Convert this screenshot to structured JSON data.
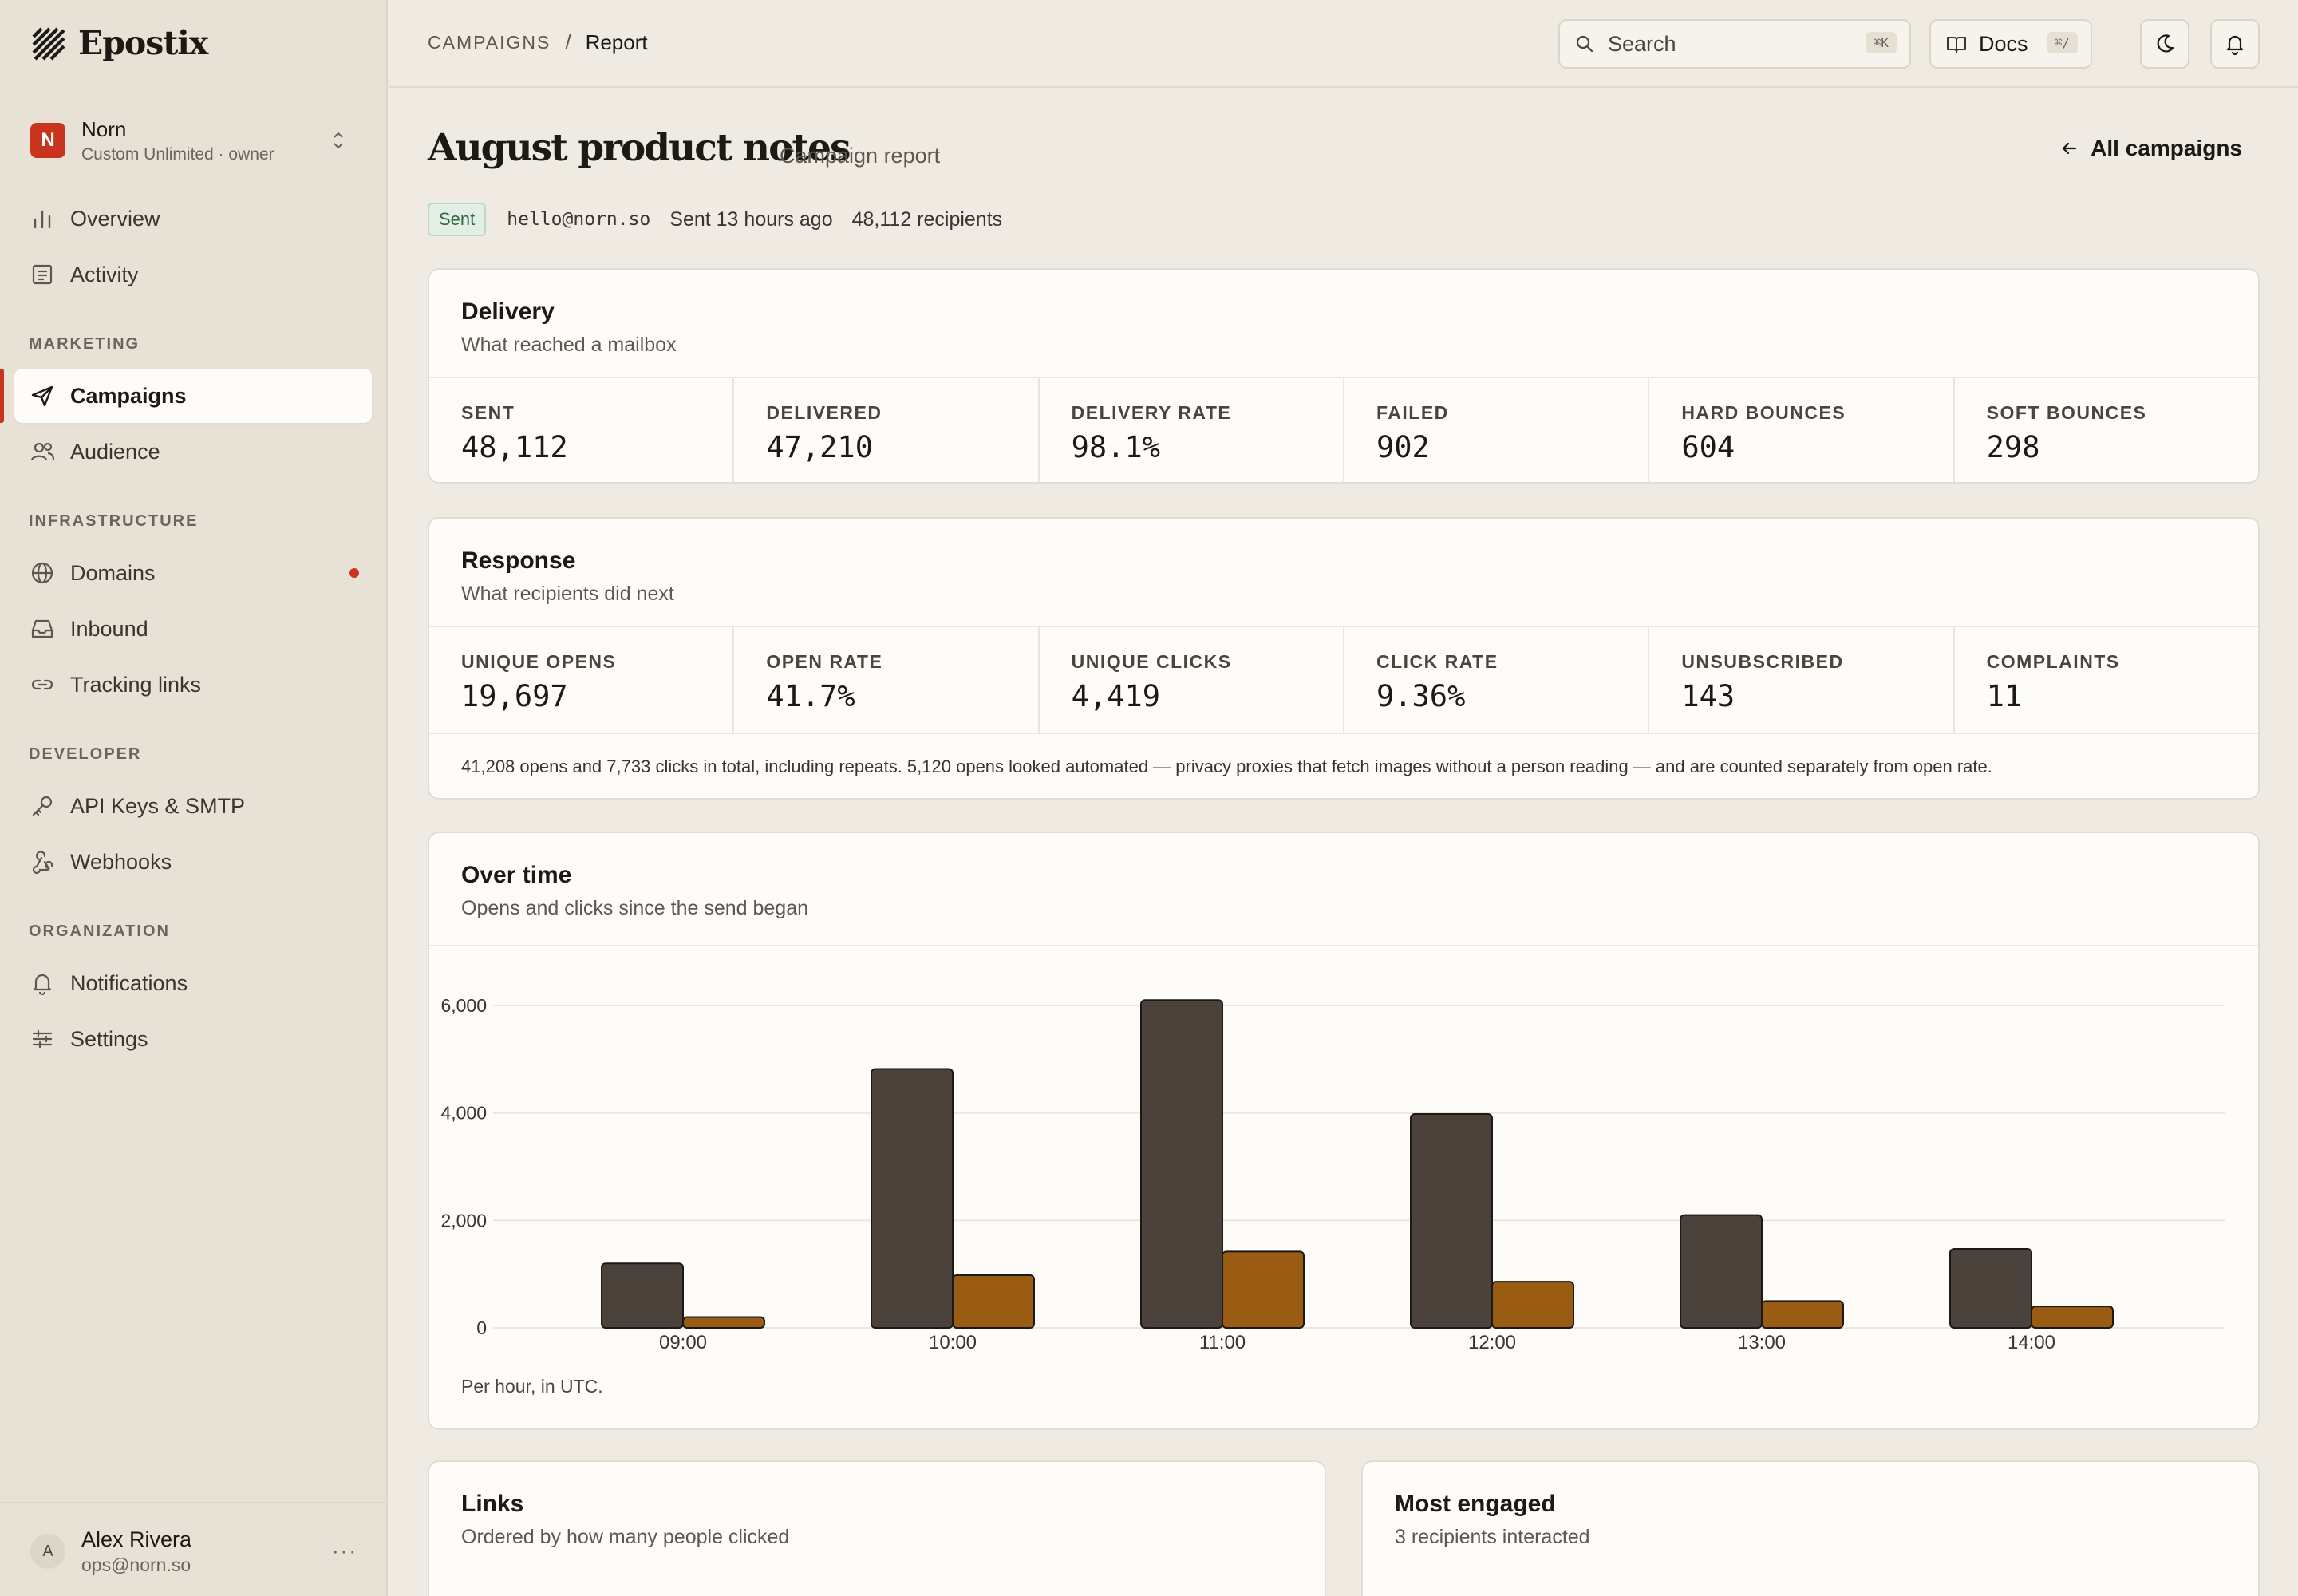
{
  "app": {
    "name": "Epostix"
  },
  "workspace": {
    "initial": "N",
    "name": "Norn",
    "plan": "Custom Unlimited · owner"
  },
  "nav": {
    "overview": "Overview",
    "activity": "Activity",
    "section_marketing": "MARKETING",
    "campaigns": "Campaigns",
    "audience": "Audience",
    "section_infrastructure": "INFRASTRUCTURE",
    "domains": "Domains",
    "inbound": "Inbound",
    "tracking_links": "Tracking links",
    "section_developer": "DEVELOPER",
    "api_keys": "API Keys & SMTP",
    "webhooks": "Webhooks",
    "section_organization": "ORGANIZATION",
    "notifications": "Notifications",
    "settings": "Settings"
  },
  "user": {
    "initial": "A",
    "name": "Alex Rivera",
    "email": "ops@norn.so",
    "more": "···"
  },
  "header": {
    "breadcrumb_parent": "CAMPAIGNS",
    "breadcrumb_sep": "/",
    "breadcrumb_current": "Report",
    "search_placeholder": "Search",
    "search_shortcut": "⌘K",
    "docs_label": "Docs",
    "docs_shortcut": "⌘/"
  },
  "page": {
    "title": "August product notes",
    "subtitle": "Campaign report",
    "back_label": "All campaigns",
    "status": "Sent",
    "from": "hello@norn.so",
    "sent_time": "Sent 13 hours ago",
    "recipients": "48,112 recipients"
  },
  "delivery": {
    "title": "Delivery",
    "desc": "What reached a mailbox",
    "stats": [
      {
        "label": "SENT",
        "value": "48,112"
      },
      {
        "label": "DELIVERED",
        "value": "47,210"
      },
      {
        "label": "DELIVERY RATE",
        "value": "98.1%"
      },
      {
        "label": "FAILED",
        "value": "902"
      },
      {
        "label": "HARD BOUNCES",
        "value": "604"
      },
      {
        "label": "SOFT BOUNCES",
        "value": "298"
      }
    ]
  },
  "response": {
    "title": "Response",
    "desc": "What recipients did next",
    "stats": [
      {
        "label": "UNIQUE OPENS",
        "value": "19,697"
      },
      {
        "label": "OPEN RATE",
        "value": "41.7%"
      },
      {
        "label": "UNIQUE CLICKS",
        "value": "4,419"
      },
      {
        "label": "CLICK RATE",
        "value": "9.36%"
      },
      {
        "label": "UNSUBSCRIBED",
        "value": "143"
      },
      {
        "label": "COMPLAINTS",
        "value": "11"
      }
    ],
    "note": "41,208 opens and 7,733 clicks in total, including repeats. 5,120 opens looked automated — privacy proxies that fetch images without a person reading — and are counted separately from open rate."
  },
  "overtime": {
    "title": "Over time",
    "desc": "Opens and clicks since the send began",
    "caption": "Per hour, in UTC."
  },
  "chart_data": {
    "type": "bar",
    "categories": [
      "09:00",
      "10:00",
      "11:00",
      "12:00",
      "13:00",
      "14:00"
    ],
    "series": [
      {
        "values": [
          1200,
          4820,
          6100,
          3980,
          2100,
          1470
        ],
        "color": "#4a423b"
      },
      {
        "values": [
          200,
          980,
          1420,
          860,
          500,
          400
        ],
        "color": "#9a5c12"
      }
    ],
    "yticks": [
      0,
      2000,
      4000,
      6000
    ],
    "ytick_labels": [
      "0",
      "2,000",
      "4,000",
      "6,000"
    ],
    "ylim": [
      0,
      6000
    ],
    "grid": true
  },
  "links": {
    "title": "Links",
    "desc": "Ordered by how many people clicked"
  },
  "engaged": {
    "title": "Most engaged",
    "desc": "3 recipients interacted"
  },
  "colors": {
    "accent": "#c9341f",
    "bar_primary": "#4a423b",
    "bar_secondary": "#9a5c12",
    "sent_badge": "#2e6b44"
  }
}
